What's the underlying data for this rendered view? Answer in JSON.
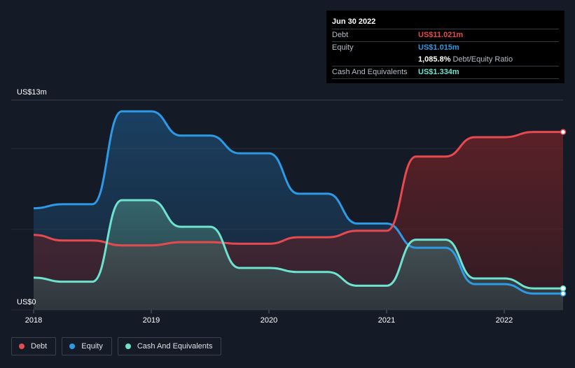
{
  "tooltip": {
    "date": "Jun 30 2022",
    "rows": [
      {
        "label": "Debt",
        "value": "US$11.021m",
        "color": "#e64a4f"
      },
      {
        "label": "Equity",
        "value": "US$1.015m",
        "color": "#2d9ae6"
      },
      {
        "label": "",
        "value": "1,085.8%",
        "suffix": "Debt/Equity Ratio",
        "color": "#ffffff"
      },
      {
        "label": "Cash And Equivalents",
        "value": "US$1.334m",
        "color": "#6ee3cf"
      }
    ]
  },
  "legend": [
    {
      "label": "Debt",
      "color": "#e64a4f"
    },
    {
      "label": "Equity",
      "color": "#2d9ae6"
    },
    {
      "label": "Cash And Equivalents",
      "color": "#6ee3cf"
    }
  ],
  "chart_data": {
    "type": "area",
    "title": "",
    "xlabel": "",
    "ylabel": "",
    "y_unit_label_top": "US$13m",
    "y_unit_label_bottom": "US$0",
    "ylim": [
      0,
      13
    ],
    "xlim": [
      2018.0,
      2022.5
    ],
    "x_ticks": [
      2018,
      2019,
      2020,
      2021,
      2022
    ],
    "x_tick_labels": [
      "2018",
      "2019",
      "2020",
      "2021",
      "2022"
    ],
    "y_gridlines": [
      0,
      5,
      10,
      13
    ],
    "series": [
      {
        "name": "Equity",
        "color": "#2d9ae6",
        "points": [
          [
            2018.0,
            6.3
          ],
          [
            2018.25,
            6.55
          ],
          [
            2018.5,
            6.55
          ],
          [
            2018.75,
            12.3
          ],
          [
            2019.0,
            12.3
          ],
          [
            2019.25,
            10.8
          ],
          [
            2019.5,
            10.8
          ],
          [
            2019.75,
            9.7
          ],
          [
            2020.0,
            9.7
          ],
          [
            2020.25,
            7.2
          ],
          [
            2020.5,
            7.2
          ],
          [
            2020.75,
            5.35
          ],
          [
            2021.0,
            5.35
          ],
          [
            2021.25,
            3.85
          ],
          [
            2021.5,
            3.85
          ],
          [
            2021.75,
            1.6
          ],
          [
            2022.0,
            1.6
          ],
          [
            2022.25,
            1.015
          ],
          [
            2022.5,
            1.015
          ]
        ]
      },
      {
        "name": "Debt",
        "color": "#e64a4f",
        "points": [
          [
            2018.0,
            4.65
          ],
          [
            2018.25,
            4.3
          ],
          [
            2018.5,
            4.3
          ],
          [
            2018.75,
            4.0
          ],
          [
            2019.0,
            4.0
          ],
          [
            2019.25,
            4.2
          ],
          [
            2019.5,
            4.2
          ],
          [
            2019.75,
            4.1
          ],
          [
            2020.0,
            4.1
          ],
          [
            2020.25,
            4.5
          ],
          [
            2020.5,
            4.5
          ],
          [
            2020.75,
            4.9
          ],
          [
            2021.0,
            4.9
          ],
          [
            2021.25,
            9.5
          ],
          [
            2021.5,
            9.5
          ],
          [
            2021.75,
            10.7
          ],
          [
            2022.0,
            10.7
          ],
          [
            2022.25,
            11.021
          ],
          [
            2022.5,
            11.021
          ]
        ]
      },
      {
        "name": "Cash And Equivalents",
        "color": "#6ee3cf",
        "points": [
          [
            2018.0,
            2.0
          ],
          [
            2018.25,
            1.75
          ],
          [
            2018.5,
            1.75
          ],
          [
            2018.75,
            6.8
          ],
          [
            2019.0,
            6.8
          ],
          [
            2019.25,
            5.15
          ],
          [
            2019.5,
            5.15
          ],
          [
            2019.75,
            2.6
          ],
          [
            2020.0,
            2.6
          ],
          [
            2020.25,
            2.35
          ],
          [
            2020.5,
            2.35
          ],
          [
            2020.75,
            1.5
          ],
          [
            2021.0,
            1.5
          ],
          [
            2021.25,
            4.35
          ],
          [
            2021.5,
            4.35
          ],
          [
            2021.75,
            1.95
          ],
          [
            2022.0,
            1.95
          ],
          [
            2022.25,
            1.334
          ],
          [
            2022.5,
            1.334
          ]
        ]
      }
    ]
  }
}
